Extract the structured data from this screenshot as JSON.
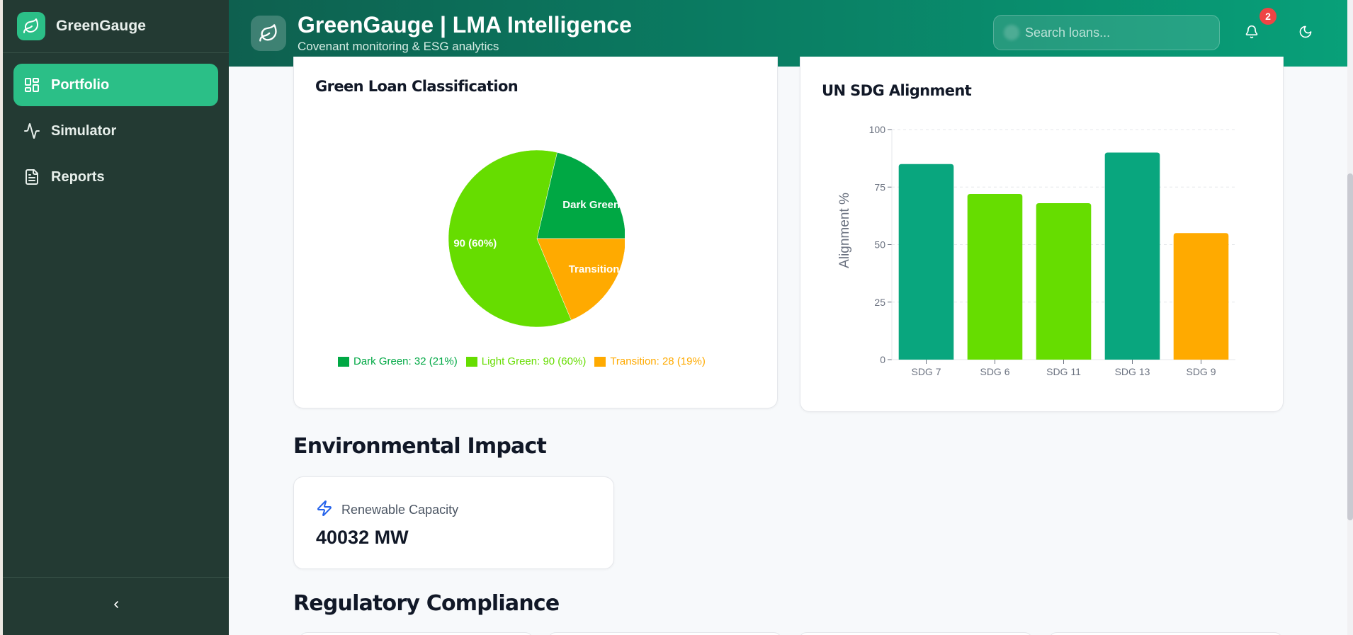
{
  "sidebar": {
    "brand": "GreenGauge",
    "items": [
      {
        "label": "Portfolio",
        "icon": "layout-grid-icon",
        "active": true
      },
      {
        "label": "Simulator",
        "icon": "activity-icon",
        "active": false
      },
      {
        "label": "Reports",
        "icon": "file-text-icon",
        "active": false
      }
    ],
    "collapse_icon": "chevron-left-icon"
  },
  "header": {
    "title": "GreenGauge | LMA Intelligence",
    "subtitle": "Covenant monitoring & ESG analytics",
    "search_placeholder": "Search loans...",
    "search_value": "",
    "notification_count": "2",
    "icons": [
      "leaf-icon",
      "bell-icon",
      "moon-icon"
    ]
  },
  "colors": {
    "dark_green": "#00a844",
    "light_green": "#66dd00",
    "transition": "#ffaa00",
    "teal": "#09a67e",
    "sidebar_bg": "#233a33",
    "active_nav": "#2bbf87"
  },
  "pie_card": {
    "title": "Green Loan Classification"
  },
  "bar_card": {
    "title": "UN SDG Alignment"
  },
  "chart_data": [
    {
      "type": "pie",
      "title": "Green Loan Classification",
      "slices": [
        {
          "label": "Dark Green",
          "value": 32,
          "percent": 21,
          "color": "#00a844",
          "slice_label": "Dark Green",
          "legend": "Dark Green: 32 (21%)"
        },
        {
          "label": "Light Green",
          "value": 90,
          "percent": 60,
          "color": "#66dd00",
          "slice_label": "90 (60%)",
          "legend": "Light Green: 90 (60%)"
        },
        {
          "label": "Transition",
          "value": 28,
          "percent": 19,
          "color": "#ffaa00",
          "slice_label": "Transition",
          "legend": "Transition: 28 (19%)"
        }
      ],
      "legend_position": "bottom"
    },
    {
      "type": "bar",
      "title": "UN SDG Alignment",
      "categories": [
        "SDG 7",
        "SDG 6",
        "SDG 11",
        "SDG 13",
        "SDG 9"
      ],
      "values": [
        85,
        72,
        68,
        90,
        55
      ],
      "colors": [
        "#09a67e",
        "#66dd00",
        "#66dd00",
        "#09a67e",
        "#ffaa00"
      ],
      "xlabel": "",
      "ylabel": "Alignment %",
      "ylim": [
        0,
        100
      ],
      "yticks": [
        0,
        25,
        50,
        75,
        100
      ],
      "grid": true
    }
  ],
  "environmental": {
    "section_title": "Environmental Impact",
    "metrics": [
      {
        "label": "Renewable Capacity",
        "value": "40032 MW",
        "icon": "zap-icon"
      }
    ]
  },
  "regulatory": {
    "section_title": "Regulatory Compliance",
    "card_count": 4
  }
}
